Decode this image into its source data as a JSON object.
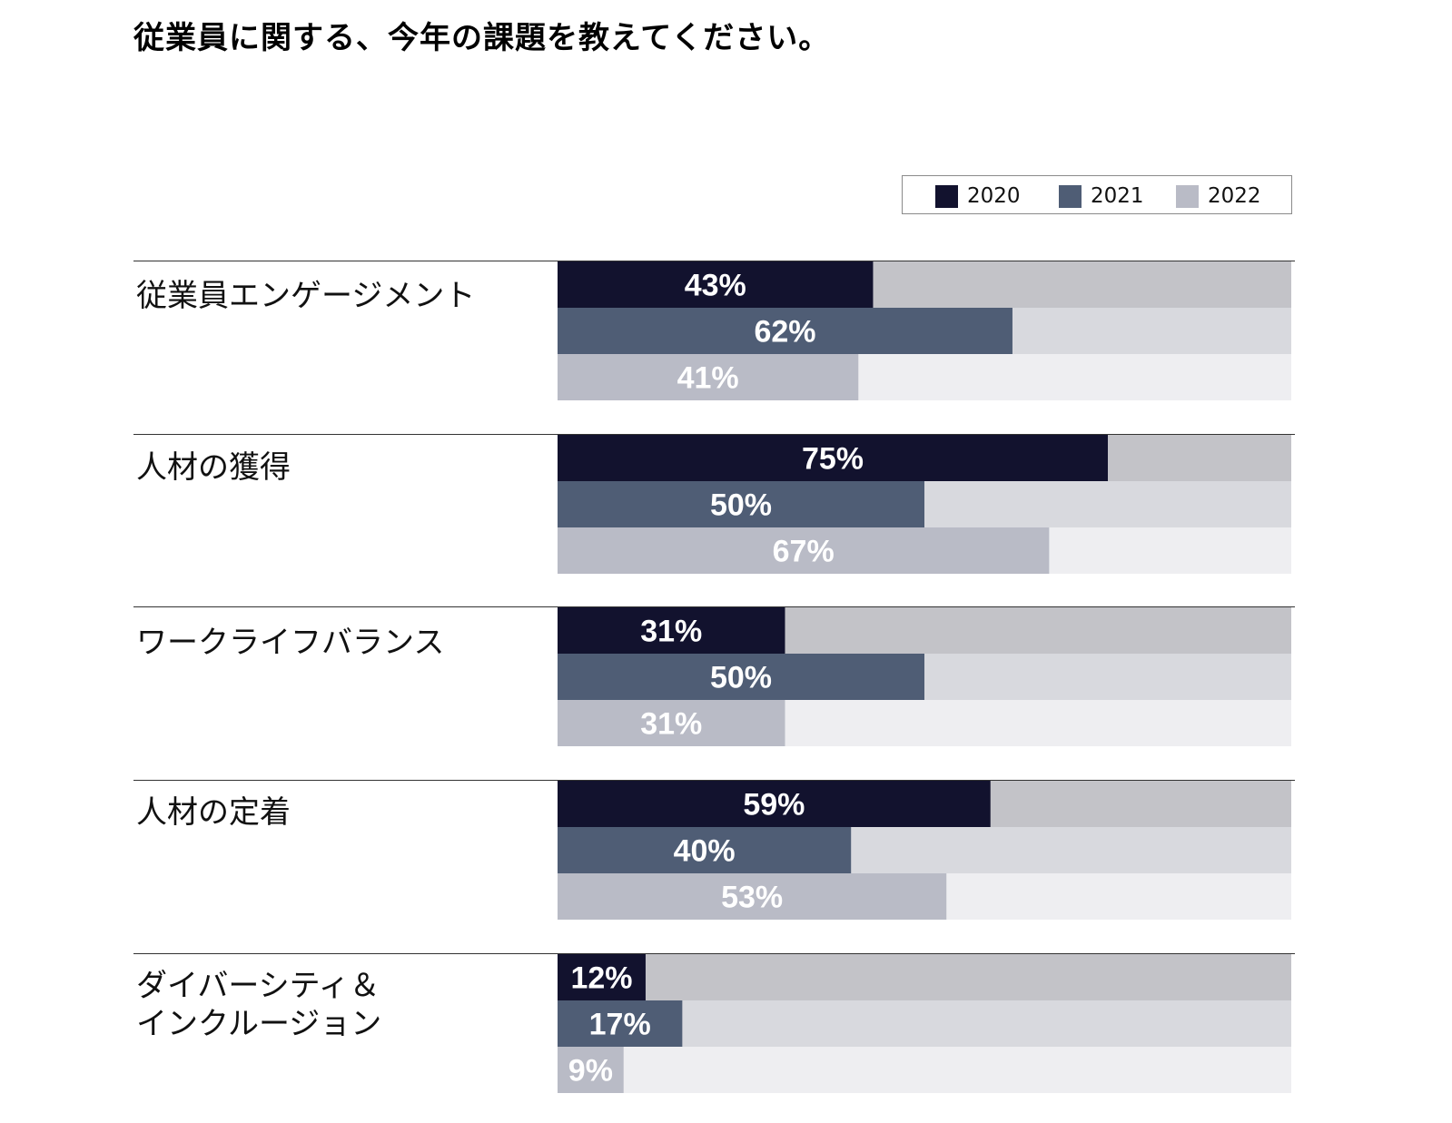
{
  "chart_data": {
    "type": "bar",
    "orientation": "horizontal",
    "title": "従業員に関する、今年の課題を教えてください。",
    "xlim": [
      0,
      100
    ],
    "unit": "%",
    "grid": false,
    "legend_position": "top-right",
    "categories": [
      "従業員エンゲージメント",
      "人材の獲得",
      "ワークライフバランス",
      "人材の定着",
      "ダイバーシティ＆\nインクルージョン"
    ],
    "series": [
      {
        "name": "2020",
        "color": "#12122e",
        "track_color": "#c3c3c8",
        "values": [
          43,
          75,
          31,
          59,
          12
        ]
      },
      {
        "name": "2021",
        "color": "#4f5d75",
        "track_color": "#d8d9de",
        "values": [
          62,
          50,
          50,
          40,
          17
        ]
      },
      {
        "name": "2022",
        "color": "#b9bbc6",
        "track_color": "#eeeef1",
        "values": [
          41,
          67,
          31,
          53,
          9
        ]
      }
    ],
    "value_labels": [
      [
        "43%",
        "62%",
        "41%"
      ],
      [
        "75%",
        "50%",
        "67%"
      ],
      [
        "31%",
        "50%",
        "31%"
      ],
      [
        "59%",
        "40%",
        "53%"
      ],
      [
        "12%",
        "17%",
        "9%"
      ]
    ]
  }
}
